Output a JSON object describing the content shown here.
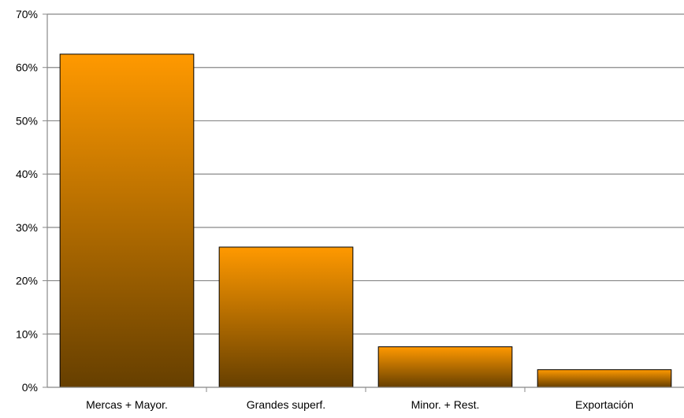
{
  "chart_data": {
    "type": "bar",
    "title": "",
    "xlabel": "",
    "ylabel": "",
    "categories": [
      "Mercas + Mayor.",
      "Grandes superf.",
      "Minor. + Rest.",
      "Exportación"
    ],
    "values": [
      62.5,
      26.3,
      7.6,
      3.3
    ],
    "value_unit": "%",
    "ylim": [
      0,
      70
    ],
    "yticks": [
      0,
      10,
      20,
      30,
      40,
      50,
      60,
      70
    ],
    "ytick_labels": [
      "0%",
      "10%",
      "20%",
      "30%",
      "40%",
      "50%",
      "60%",
      "70%"
    ],
    "grid": true,
    "legend": "none",
    "colors": {
      "bar_top": "#ff9900",
      "bar_bottom": "#663f00",
      "bar_outline": "#000000",
      "gridline": "#888888",
      "axis": "#888888"
    }
  }
}
